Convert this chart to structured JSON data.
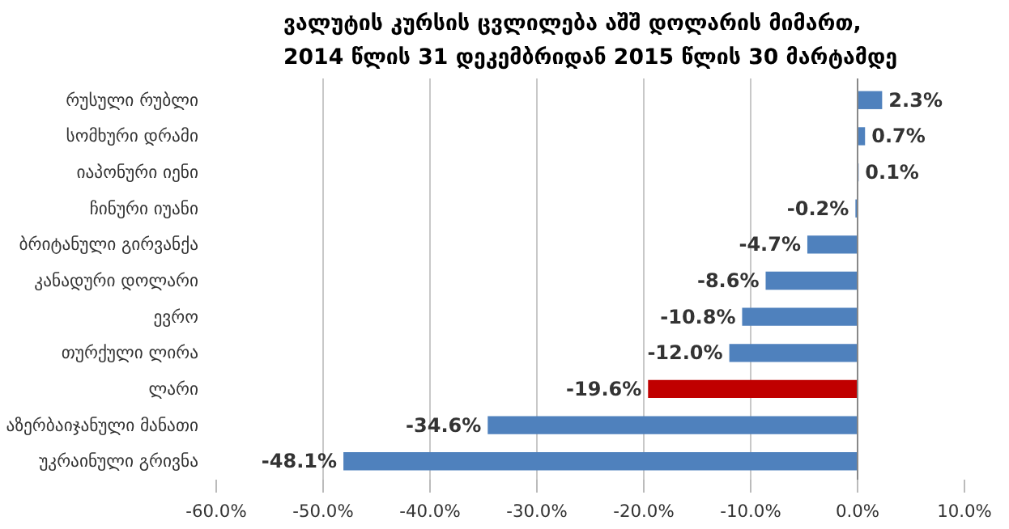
{
  "chart_data": {
    "type": "bar",
    "orientation": "horizontal",
    "title": "ვალუტის კურსის ცვლილება აშშ დოლარის მიმართ,\n2014 წლის 31 დეკემბრიდან 2015 წლის 30 მარტამდე",
    "categories": [
      "რუსული რუბლი",
      "სომხური დრამი",
      "იაპონური იენი",
      "ჩინური იუანი",
      "ბრიტანული გირვანქა",
      "კანადური დოლარი",
      "ევრო",
      "თურქული ლირა",
      "ლარი",
      "აზერბაიჯანული მანათი",
      "უკრაინული გრივნა"
    ],
    "values": [
      2.3,
      0.7,
      0.1,
      -0.2,
      -4.7,
      -8.6,
      -10.8,
      -12.0,
      -19.6,
      -34.6,
      -48.1
    ],
    "value_labels": [
      "2.3%",
      "0.7%",
      "0.1%",
      "-0.2%",
      "-4.7%",
      "-8.6%",
      "-10.8%",
      "-12.0%",
      "-19.6%",
      "-34.6%",
      "-48.1%"
    ],
    "colors": [
      "#4f81bd",
      "#4f81bd",
      "#4f81bd",
      "#4f81bd",
      "#4f81bd",
      "#4f81bd",
      "#4f81bd",
      "#4f81bd",
      "#c00000",
      "#4f81bd",
      "#4f81bd"
    ],
    "xlim": [
      -60,
      10
    ],
    "xticks": [
      {
        "value": -60,
        "label": "-60.0%"
      },
      {
        "value": -50,
        "label": "-50.0%"
      },
      {
        "value": -40,
        "label": "-40.0%"
      },
      {
        "value": -30,
        "label": "-30.0%"
      },
      {
        "value": -20,
        "label": "-20.0%"
      },
      {
        "value": -10,
        "label": "-10.0%"
      },
      {
        "value": 0,
        "label": "0.0%"
      },
      {
        "value": 10,
        "label": "10.0%"
      }
    ],
    "grid": "x"
  }
}
